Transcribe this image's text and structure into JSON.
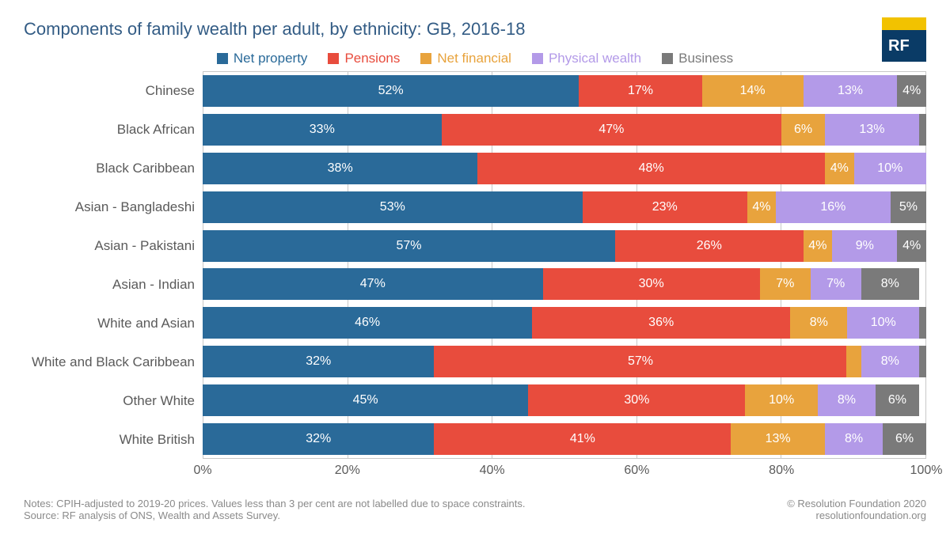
{
  "title": "Components of family wealth per adult, by ethnicity: GB, 2016-18",
  "logo_text": "RF",
  "legend": [
    {
      "label": "Net property",
      "color": "#2a6a99"
    },
    {
      "label": "Pensions",
      "color": "#e84c3d"
    },
    {
      "label": "Net financial",
      "color": "#e8a33d"
    },
    {
      "label": "Physical wealth",
      "color": "#b39ae8"
    },
    {
      "label": "Business",
      "color": "#7a7a7a"
    }
  ],
  "chart": {
    "type": "stacked-bar-horizontal",
    "xlim": [
      0,
      100
    ],
    "xticks": [
      0,
      20,
      40,
      60,
      80,
      100
    ],
    "xtick_suffix": "%",
    "label_min_pct": 3,
    "label_fontsize": 16,
    "label_color": "#ffffff",
    "grid_color": "#c8c8c8",
    "categories": [
      {
        "name": "Chinese",
        "values": [
          52,
          17,
          14,
          13,
          4
        ]
      },
      {
        "name": "Black African",
        "values": [
          33,
          47,
          6,
          13,
          1
        ]
      },
      {
        "name": "Black Caribbean",
        "values": [
          38,
          48,
          4,
          10,
          0
        ]
      },
      {
        "name": "Asian - Bangladeshi",
        "values": [
          53,
          23,
          4,
          16,
          5
        ]
      },
      {
        "name": "Asian - Pakistani",
        "values": [
          57,
          26,
          4,
          9,
          4
        ]
      },
      {
        "name": "Asian - Indian",
        "values": [
          47,
          30,
          7,
          7,
          8
        ]
      },
      {
        "name": "White and Asian",
        "values": [
          46,
          36,
          8,
          10,
          1
        ]
      },
      {
        "name": "White and Black Caribbean",
        "values": [
          32,
          57,
          2,
          8,
          1
        ]
      },
      {
        "name": "Other White",
        "values": [
          45,
          30,
          10,
          8,
          6
        ]
      },
      {
        "name": "White British",
        "values": [
          32,
          41,
          13,
          8,
          6
        ]
      }
    ]
  },
  "footer": {
    "notes": "Notes: CPIH-adjusted to 2019-20 prices. Values less than 3 per cent are not labelled due to space constraints.",
    "source": "Source: RF analysis of ONS, Wealth and Assets Survey.",
    "copyright": "© Resolution Foundation 2020",
    "url": "resolutionfoundation.org"
  }
}
